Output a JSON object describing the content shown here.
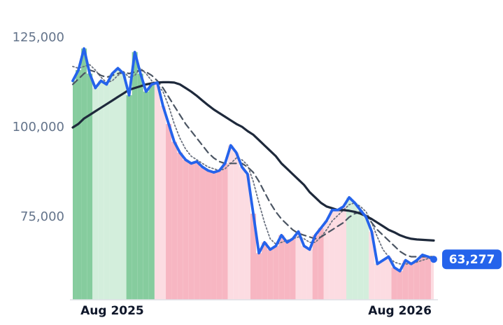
{
  "chart_data": {
    "type": "line",
    "categories": [
      null,
      null,
      null,
      null,
      null,
      null,
      null,
      "Aug 2025",
      null,
      null,
      null,
      null,
      null,
      null,
      null,
      null,
      null,
      null,
      null,
      null,
      null,
      null,
      null,
      null,
      null,
      null,
      null,
      null,
      null,
      null,
      null,
      null,
      null,
      null,
      null,
      null,
      null,
      null,
      null,
      null,
      null,
      null,
      null,
      null,
      null,
      null,
      null,
      null,
      null,
      null,
      null,
      null,
      null,
      null,
      null,
      null,
      null,
      null,
      "Aug 2026",
      null,
      null,
      null,
      null,
      null,
      null
    ],
    "series": [
      {
        "color": "#2563eb",
        "style": "solid",
        "area": true,
        "values": [
          113000,
          116000,
          122000,
          115000,
          111000,
          113000,
          112000,
          115000,
          116500,
          115000,
          109000,
          121000,
          115000,
          110000,
          112000,
          112500,
          106000,
          101000,
          96000,
          93000,
          91000,
          90000,
          90500,
          89000,
          88000,
          87500,
          88000,
          90000,
          95000,
          93000,
          89000,
          87000,
          76000,
          65000,
          68000,
          66000,
          67000,
          70000,
          68000,
          69000,
          71000,
          67000,
          66000,
          70000,
          72000,
          74000,
          77000,
          77000,
          78000,
          80500,
          79000,
          77000,
          75000,
          71000,
          62000,
          63000,
          64000,
          61000,
          60000,
          63000,
          62000,
          63000,
          64500,
          64000,
          63277
        ],
        "value_labels": [
          null,
          null,
          null,
          null,
          null,
          null,
          null,
          null,
          null,
          null,
          null,
          null,
          null,
          null,
          null,
          null,
          null,
          null,
          null,
          null,
          null,
          null,
          null,
          null,
          null,
          null,
          null,
          null,
          null,
          null,
          null,
          null,
          null,
          null,
          null,
          null,
          null,
          null,
          null,
          null,
          null,
          null,
          null,
          null,
          null,
          null,
          null,
          null,
          null,
          null,
          null,
          null,
          null,
          null,
          null,
          null,
          null,
          null,
          null,
          null,
          null,
          null,
          null,
          null,
          "63,277"
        ]
      },
      {
        "color": "#1e293b",
        "style": "solid",
        "values": [
          100000,
          101000,
          102500,
          103500,
          104500,
          105500,
          106500,
          107500,
          108500,
          109500,
          110500,
          111000,
          111500,
          112000,
          112300,
          112500,
          112600,
          112600,
          112500,
          112000,
          111000,
          110000,
          108800,
          107500,
          106200,
          105000,
          104000,
          103000,
          102000,
          101000,
          100200,
          99000,
          98000,
          96500,
          95000,
          93500,
          92000,
          90000,
          88500,
          87000,
          85500,
          84000,
          82000,
          80500,
          79000,
          78000,
          77500,
          77000,
          77000,
          76800,
          76500,
          76000,
          75300,
          74500,
          73500,
          72500,
          71500,
          70800,
          70000,
          69400,
          69000,
          68800,
          68700,
          68600,
          68500
        ]
      },
      {
        "color": "#4b5563",
        "style": "dashed",
        "values": [
          112000,
          113500,
          115000,
          116000,
          115500,
          114500,
          114000,
          114500,
          115000,
          115500,
          115000,
          115500,
          116000,
          115500,
          114500,
          113000,
          111000,
          108500,
          106000,
          103500,
          101000,
          99000,
          97000,
          95000,
          93000,
          91500,
          90500,
          90000,
          90000,
          90000,
          90000,
          89000,
          87500,
          85000,
          82000,
          79000,
          76500,
          74500,
          73000,
          71500,
          70500,
          70000,
          69500,
          69000,
          69500,
          70500,
          71500,
          72500,
          73500,
          75000,
          76000,
          76500,
          75500,
          73500,
          71500,
          70000,
          68500,
          67000,
          65500,
          64500,
          64000,
          64000,
          64000,
          64000,
          64000
        ]
      },
      {
        "color": "#6b7280",
        "style": "dotted",
        "values": [
          117000,
          116500,
          117000,
          117500,
          116000,
          114000,
          112500,
          113000,
          114500,
          115500,
          114000,
          114500,
          116500,
          115000,
          113000,
          112000,
          110000,
          106000,
          101000,
          97000,
          94000,
          92000,
          91000,
          90000,
          89000,
          88500,
          88000,
          88500,
          90000,
          91500,
          91000,
          89500,
          85000,
          79000,
          73500,
          69000,
          67500,
          68000,
          68500,
          69000,
          69500,
          69000,
          68000,
          68000,
          69500,
          71500,
          74000,
          75500,
          77000,
          78500,
          79000,
          78000,
          76500,
          73500,
          69500,
          66000,
          64000,
          62500,
          62000,
          62000,
          62000,
          62500,
          63000,
          63500,
          63500
        ]
      }
    ],
    "area_colors": [
      "#86cc9e",
      "#86cc9e",
      "#86cc9e",
      "#86cc9e",
      "#d3eedc",
      "#d3eedc",
      "#d3eedc",
      "#d3eedc",
      "#d3eedc",
      "#d3eedc",
      "#86cc9e",
      "#86cc9e",
      "#86cc9e",
      "#86cc9e",
      "#86cc9e",
      "#fcdce2",
      "#fcdce2",
      "#f7b6c2",
      "#f7b6c2",
      "#f7b6c2",
      "#f7b6c2",
      "#f7b6c2",
      "#f7b6c2",
      "#f7b6c2",
      "#f7b6c2",
      "#f7b6c2",
      "#f7b6c2",
      "#f7b6c2",
      "#fcdce2",
      "#fcdce2",
      "#fcdce2",
      "#fcdce2",
      "#f7b6c2",
      "#f7b6c2",
      "#f7b6c2",
      "#f7b6c2",
      "#f7b6c2",
      "#f7b6c2",
      "#f7b6c2",
      "#f7b6c2",
      "#fcdce2",
      "#fcdce2",
      "#fcdce2",
      "#f7b6c2",
      "#f7b6c2",
      "#fcdce2",
      "#fcdce2",
      "#fcdce2",
      "#fcdce2",
      "#d3eedc",
      "#d3eedc",
      "#d3eedc",
      "#d3eedc",
      "#fcdce2",
      "#fcdce2",
      "#fcdce2",
      "#fcdce2",
      "#f7b6c2",
      "#f7b6c2",
      "#f7b6c2",
      "#f7b6c2",
      "#f7b6c2",
      "#f7b6c2",
      "#f7b6c2",
      "#fcdce2"
    ],
    "ylim": [
      52000,
      132000
    ],
    "yticks": [
      {
        "value": 75000,
        "label": "75,000"
      },
      {
        "value": 100000,
        "label": "100,000"
      },
      {
        "value": 125000,
        "label": "125,000"
      }
    ],
    "grid": false
  }
}
